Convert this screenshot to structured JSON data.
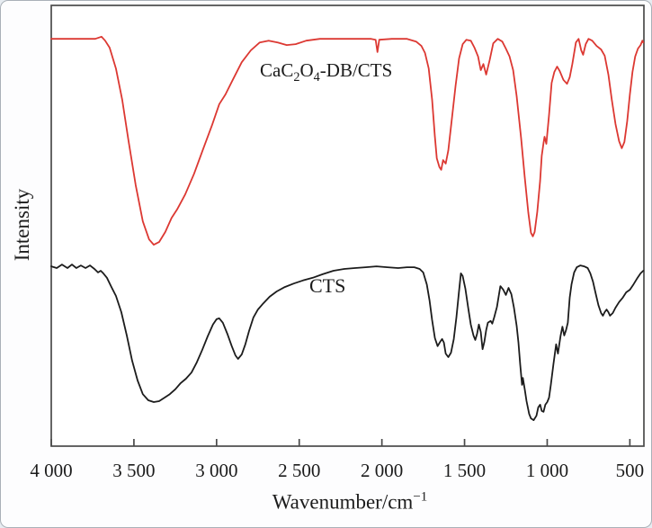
{
  "chart_data": {
    "type": "line",
    "title": "",
    "xlabel": "Wavenumber/cm⁻¹",
    "xlabel_parts": {
      "base": "Wavenumber/cm",
      "superscript": "−1"
    },
    "ylabel": "Intensity",
    "x_axis_reversed": true,
    "x_range_displayed": [
      4000,
      415
    ],
    "x_ticks": [
      4000,
      3500,
      3000,
      2500,
      2000,
      1500,
      1000,
      500
    ],
    "x_tick_labels": [
      "4 000",
      "3 500",
      "3 000",
      "2 500",
      "2 000",
      "1 500",
      "1 000",
      "500"
    ],
    "y_ticks": [],
    "y_units": "arbitrary intensity, 0-1000 scale spanning plot height",
    "grid": false,
    "legend_position": "inline annotations on curves",
    "frame_color": "#4a4a4a",
    "series": [
      {
        "name": "CaC2O4-DB/CTS",
        "label": "CaC₂O₄-DB/CTS",
        "label_parts": [
          "CaC",
          "2",
          "O",
          "4",
          "-DB/CTS"
        ],
        "color": "#dc3832",
        "points": [
          [
            4000,
            924
          ],
          [
            3815,
            924
          ],
          [
            3734,
            924
          ],
          [
            3696,
            929
          ],
          [
            3674,
            920
          ],
          [
            3647,
            904
          ],
          [
            3609,
            857
          ],
          [
            3571,
            786
          ],
          [
            3533,
            694
          ],
          [
            3489,
            592
          ],
          [
            3446,
            510
          ],
          [
            3408,
            469
          ],
          [
            3380,
            457
          ],
          [
            3348,
            463
          ],
          [
            3310,
            486
          ],
          [
            3272,
            518
          ],
          [
            3239,
            537
          ],
          [
            3190,
            571
          ],
          [
            3136,
            618
          ],
          [
            3082,
            673
          ],
          [
            3027,
            729
          ],
          [
            2984,
            776
          ],
          [
            2946,
            798
          ],
          [
            2902,
            831
          ],
          [
            2848,
            871
          ],
          [
            2793,
            898
          ],
          [
            2739,
            916
          ],
          [
            2685,
            920
          ],
          [
            2630,
            916
          ],
          [
            2576,
            910
          ],
          [
            2522,
            912
          ],
          [
            2457,
            920
          ],
          [
            2375,
            924
          ],
          [
            2266,
            924
          ],
          [
            2158,
            924
          ],
          [
            2065,
            924
          ],
          [
            2038,
            922
          ],
          [
            2027,
            894
          ],
          [
            2016,
            922
          ],
          [
            1940,
            924
          ],
          [
            1848,
            924
          ],
          [
            1793,
            918
          ],
          [
            1761,
            908
          ],
          [
            1739,
            892
          ],
          [
            1717,
            857
          ],
          [
            1696,
            786
          ],
          [
            1680,
            704
          ],
          [
            1668,
            653
          ],
          [
            1652,
            633
          ],
          [
            1641,
            627
          ],
          [
            1630,
            649
          ],
          [
            1614,
            641
          ],
          [
            1598,
            671
          ],
          [
            1576,
            745
          ],
          [
            1554,
            818
          ],
          [
            1533,
            880
          ],
          [
            1511,
            912
          ],
          [
            1489,
            922
          ],
          [
            1462,
            920
          ],
          [
            1440,
            904
          ],
          [
            1418,
            884
          ],
          [
            1402,
            853
          ],
          [
            1386,
            867
          ],
          [
            1369,
            843
          ],
          [
            1348,
            876
          ],
          [
            1326,
            914
          ],
          [
            1299,
            924
          ],
          [
            1272,
            918
          ],
          [
            1250,
            902
          ],
          [
            1228,
            884
          ],
          [
            1206,
            853
          ],
          [
            1185,
            794
          ],
          [
            1158,
            700
          ],
          [
            1136,
            610
          ],
          [
            1114,
            529
          ],
          [
            1098,
            484
          ],
          [
            1087,
            476
          ],
          [
            1076,
            486
          ],
          [
            1060,
            531
          ],
          [
            1043,
            602
          ],
          [
            1033,
            659
          ],
          [
            1022,
            688
          ],
          [
            1016,
            702
          ],
          [
            1005,
            686
          ],
          [
            989,
            751
          ],
          [
            973,
            824
          ],
          [
            957,
            849
          ],
          [
            940,
            861
          ],
          [
            924,
            851
          ],
          [
            902,
            831
          ],
          [
            880,
            822
          ],
          [
            864,
            837
          ],
          [
            848,
            867
          ],
          [
            826,
            916
          ],
          [
            810,
            924
          ],
          [
            794,
            898
          ],
          [
            783,
            888
          ],
          [
            767,
            912
          ],
          [
            750,
            924
          ],
          [
            728,
            920
          ],
          [
            701,
            908
          ],
          [
            674,
            900
          ],
          [
            652,
            886
          ],
          [
            630,
            843
          ],
          [
            609,
            786
          ],
          [
            587,
            731
          ],
          [
            565,
            692
          ],
          [
            549,
            676
          ],
          [
            533,
            690
          ],
          [
            516,
            737
          ],
          [
            500,
            798
          ],
          [
            484,
            849
          ],
          [
            468,
            884
          ],
          [
            451,
            902
          ],
          [
            435,
            910
          ],
          [
            424,
            920
          ],
          [
            419,
            916
          ]
        ]
      },
      {
        "name": "CTS",
        "label": "CTS",
        "color": "#1c1c1c",
        "points": [
          [
            4000,
            408
          ],
          [
            3967,
            404
          ],
          [
            3935,
            412
          ],
          [
            3902,
            404
          ],
          [
            3875,
            412
          ],
          [
            3848,
            404
          ],
          [
            3821,
            410
          ],
          [
            3793,
            404
          ],
          [
            3766,
            410
          ],
          [
            3739,
            402
          ],
          [
            3717,
            394
          ],
          [
            3701,
            398
          ],
          [
            3685,
            392
          ],
          [
            3663,
            382
          ],
          [
            3636,
            361
          ],
          [
            3609,
            341
          ],
          [
            3576,
            304
          ],
          [
            3543,
            251
          ],
          [
            3511,
            194
          ],
          [
            3478,
            149
          ],
          [
            3446,
            118
          ],
          [
            3413,
            104
          ],
          [
            3380,
            100
          ],
          [
            3348,
            102
          ],
          [
            3315,
            110
          ],
          [
            3283,
            118
          ],
          [
            3250,
            129
          ],
          [
            3217,
            143
          ],
          [
            3185,
            153
          ],
          [
            3152,
            167
          ],
          [
            3120,
            190
          ],
          [
            3087,
            218
          ],
          [
            3054,
            249
          ],
          [
            3022,
            276
          ],
          [
            3000,
            288
          ],
          [
            2984,
            290
          ],
          [
            2962,
            280
          ],
          [
            2935,
            255
          ],
          [
            2908,
            227
          ],
          [
            2886,
            206
          ],
          [
            2870,
            198
          ],
          [
            2848,
            208
          ],
          [
            2826,
            231
          ],
          [
            2804,
            261
          ],
          [
            2777,
            292
          ],
          [
            2750,
            310
          ],
          [
            2717,
            324
          ],
          [
            2679,
            339
          ],
          [
            2636,
            351
          ],
          [
            2587,
            361
          ],
          [
            2533,
            369
          ],
          [
            2478,
            376
          ],
          [
            2418,
            382
          ],
          [
            2359,
            390
          ],
          [
            2293,
            398
          ],
          [
            2228,
            402
          ],
          [
            2163,
            404
          ],
          [
            2098,
            406
          ],
          [
            2033,
            408
          ],
          [
            1967,
            406
          ],
          [
            1902,
            404
          ],
          [
            1848,
            406
          ],
          [
            1804,
            406
          ],
          [
            1772,
            402
          ],
          [
            1750,
            394
          ],
          [
            1728,
            367
          ],
          [
            1712,
            331
          ],
          [
            1696,
            286
          ],
          [
            1679,
            245
          ],
          [
            1663,
            227
          ],
          [
            1647,
            237
          ],
          [
            1636,
            243
          ],
          [
            1625,
            235
          ],
          [
            1614,
            210
          ],
          [
            1598,
            202
          ],
          [
            1582,
            212
          ],
          [
            1565,
            243
          ],
          [
            1549,
            292
          ],
          [
            1533,
            353
          ],
          [
            1522,
            392
          ],
          [
            1511,
            386
          ],
          [
            1495,
            357
          ],
          [
            1478,
            314
          ],
          [
            1462,
            276
          ],
          [
            1446,
            251
          ],
          [
            1435,
            241
          ],
          [
            1424,
            255
          ],
          [
            1413,
            276
          ],
          [
            1402,
            259
          ],
          [
            1391,
            220
          ],
          [
            1380,
            237
          ],
          [
            1369,
            263
          ],
          [
            1359,
            280
          ],
          [
            1342,
            284
          ],
          [
            1332,
            278
          ],
          [
            1321,
            292
          ],
          [
            1304,
            316
          ],
          [
            1293,
            341
          ],
          [
            1283,
            363
          ],
          [
            1266,
            355
          ],
          [
            1250,
            343
          ],
          [
            1234,
            359
          ],
          [
            1217,
            345
          ],
          [
            1201,
            314
          ],
          [
            1185,
            273
          ],
          [
            1174,
            235
          ],
          [
            1163,
            184
          ],
          [
            1152,
            139
          ],
          [
            1147,
            155
          ],
          [
            1136,
            129
          ],
          [
            1125,
            102
          ],
          [
            1109,
            73
          ],
          [
            1098,
            63
          ],
          [
            1082,
            59
          ],
          [
            1065,
            69
          ],
          [
            1054,
            88
          ],
          [
            1043,
            94
          ],
          [
            1033,
            80
          ],
          [
            1022,
            78
          ],
          [
            1011,
            94
          ],
          [
            1000,
            100
          ],
          [
            989,
            110
          ],
          [
            978,
            139
          ],
          [
            962,
            186
          ],
          [
            946,
            231
          ],
          [
            935,
            210
          ],
          [
            919,
            251
          ],
          [
            908,
            271
          ],
          [
            897,
            251
          ],
          [
            886,
            263
          ],
          [
            875,
            280
          ],
          [
            864,
            337
          ],
          [
            853,
            367
          ],
          [
            837,
            394
          ],
          [
            821,
            406
          ],
          [
            799,
            410
          ],
          [
            777,
            408
          ],
          [
            755,
            404
          ],
          [
            739,
            392
          ],
          [
            723,
            373
          ],
          [
            707,
            347
          ],
          [
            690,
            320
          ],
          [
            674,
            302
          ],
          [
            663,
            296
          ],
          [
            652,
            304
          ],
          [
            641,
            310
          ],
          [
            630,
            304
          ],
          [
            620,
            296
          ],
          [
            603,
            302
          ],
          [
            587,
            314
          ],
          [
            565,
            327
          ],
          [
            543,
            337
          ],
          [
            522,
            349
          ],
          [
            500,
            355
          ],
          [
            478,
            367
          ],
          [
            457,
            380
          ],
          [
            435,
            392
          ],
          [
            419,
            398
          ]
        ]
      }
    ]
  }
}
